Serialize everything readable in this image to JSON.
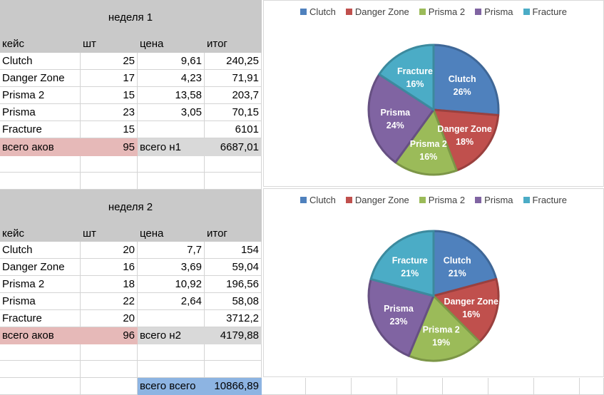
{
  "week1": {
    "title": "неделя 1",
    "headers": [
      "кейс",
      "шт",
      "цена",
      "итог"
    ],
    "rows": [
      [
        "Clutch",
        "25",
        "9,61",
        "240,25"
      ],
      [
        "Danger Zone",
        "17",
        "4,23",
        "71,91"
      ],
      [
        "Prisma 2",
        "15",
        "13,58",
        "203,7"
      ],
      [
        "Prisma",
        "23",
        "3,05",
        "70,15"
      ],
      [
        "Fracture",
        "15",
        "",
        "6101"
      ]
    ],
    "total_label": "всего аков",
    "total_count": "95",
    "sum_label": "всего н1",
    "sum_value": "6687,01"
  },
  "week2": {
    "title": "неделя 2",
    "headers": [
      "кейс",
      "шт",
      "цена",
      "итог"
    ],
    "rows": [
      [
        "Clutch",
        "20",
        "7,7",
        "154"
      ],
      [
        "Danger Zone",
        "16",
        "3,69",
        "59,04"
      ],
      [
        "Prisma 2",
        "18",
        "10,92",
        "196,56"
      ],
      [
        "Prisma",
        "22",
        "2,64",
        "58,08"
      ],
      [
        "Fracture",
        "20",
        "",
        "3712,2"
      ]
    ],
    "total_label": "всего аков",
    "total_count": "96",
    "sum_label": "всего н2",
    "sum_value": "4179,88"
  },
  "grand_total": {
    "label": "всего всего",
    "value": "10866,89"
  },
  "colors": {
    "Clutch": "#4f81bd",
    "Danger Zone": "#c0504d",
    "Prisma 2": "#9bbb59",
    "Prisma": "#8064a2",
    "Fracture": "#4bacc6",
    "header_bg": "#c9c9c9",
    "pink": "#e6b9b8",
    "blue": "#8db4e2"
  },
  "chart_data": [
    {
      "type": "pie",
      "categories": [
        "Clutch",
        "Danger Zone",
        "Prisma 2",
        "Prisma",
        "Fracture"
      ],
      "values": [
        25,
        17,
        15,
        23,
        15
      ],
      "labels_percent": [
        "26%",
        "18%",
        "16%",
        "24%",
        "16%"
      ],
      "legend": [
        "Clutch",
        "Danger Zone",
        "Prisma 2",
        "Prisma",
        "Fracture"
      ],
      "legend_position": "top"
    },
    {
      "type": "pie",
      "categories": [
        "Clutch",
        "Danger Zone",
        "Prisma 2",
        "Prisma",
        "Fracture"
      ],
      "values": [
        20,
        16,
        18,
        22,
        20
      ],
      "labels_percent": [
        "21%",
        "16%",
        "19%",
        "23%",
        "21%"
      ],
      "legend": [
        "Clutch",
        "Danger Zone",
        "Prisma 2",
        "Prisma",
        "Fracture"
      ],
      "legend_position": "top"
    }
  ]
}
